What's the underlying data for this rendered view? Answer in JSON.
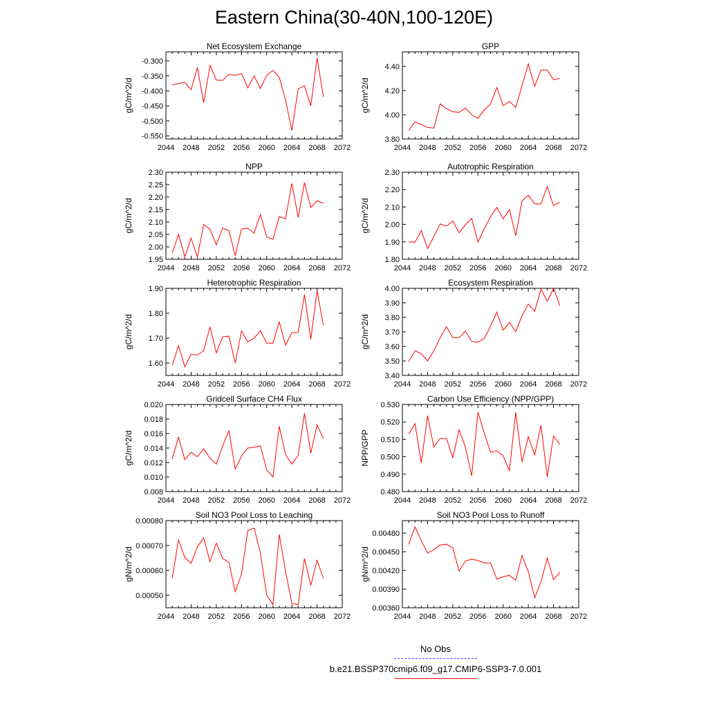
{
  "title": "Eastern China(30-40N,100-120E)",
  "legend": {
    "entries": [
      {
        "label": "No Obs",
        "color": "#4040ff",
        "style": "dashed"
      },
      {
        "label": "b.e21.BSSP370cmip6.f09_g17.CMIP6-SSP3-7.0.001",
        "color": "#ff0000",
        "style": "solid"
      }
    ],
    "placement": "bottom-right"
  },
  "chart_data": [
    {
      "type": "line",
      "title": "Net Ecosystem Exchange",
      "ylabel": "gC/m^2/d",
      "xlim": [
        2044,
        2072
      ],
      "ylim": [
        -0.56,
        -0.27
      ],
      "xticks": [
        2044,
        2048,
        2052,
        2056,
        2060,
        2064,
        2068,
        2072
      ],
      "yticks": [
        -0.55,
        -0.5,
        -0.45,
        -0.4,
        -0.35,
        -0.3
      ],
      "ytick_labels": [
        "-0.550",
        "-0.500",
        "-0.450",
        "-0.400",
        "-0.350",
        "-0.300"
      ],
      "series": [
        {
          "color": "#ff0000",
          "x": [
            2045,
            2046,
            2047,
            2048,
            2049,
            2050,
            2051,
            2052,
            2053,
            2054,
            2055,
            2056,
            2057,
            2058,
            2059,
            2060,
            2061,
            2062,
            2063,
            2064,
            2065,
            2066,
            2067,
            2068,
            2069
          ],
          "values": [
            -0.38,
            -0.375,
            -0.372,
            -0.396,
            -0.322,
            -0.439,
            -0.315,
            -0.364,
            -0.365,
            -0.345,
            -0.348,
            -0.342,
            -0.39,
            -0.35,
            -0.392,
            -0.348,
            -0.332,
            -0.355,
            -0.43,
            -0.532,
            -0.393,
            -0.383,
            -0.45,
            -0.29,
            -0.42
          ]
        }
      ]
    },
    {
      "type": "line",
      "title": "GPP",
      "ylabel": "gC/m^2/d",
      "xlim": [
        2044,
        2072
      ],
      "ylim": [
        3.8,
        4.52
      ],
      "xticks": [
        2044,
        2048,
        2052,
        2056,
        2060,
        2064,
        2068,
        2072
      ],
      "yticks": [
        3.8,
        4.0,
        4.2,
        4.4
      ],
      "ytick_labels": [
        "3.80",
        "4.00",
        "4.20",
        "4.40"
      ],
      "series": [
        {
          "color": "#ff0000",
          "x": [
            2045,
            2046,
            2047,
            2048,
            2049,
            2050,
            2051,
            2052,
            2053,
            2054,
            2055,
            2056,
            2057,
            2058,
            2059,
            2060,
            2061,
            2062,
            2063,
            2064,
            2065,
            2066,
            2067,
            2068,
            2069
          ],
          "values": [
            3.87,
            3.94,
            3.92,
            3.895,
            3.89,
            4.09,
            4.05,
            4.025,
            4.02,
            4.055,
            4.0,
            3.97,
            4.04,
            4.09,
            4.225,
            4.075,
            4.11,
            4.06,
            4.24,
            4.42,
            4.235,
            4.37,
            4.37,
            4.29,
            4.3
          ]
        }
      ]
    },
    {
      "type": "line",
      "title": "NPP",
      "ylabel": "gC/m^2/d",
      "xlim": [
        2044,
        2072
      ],
      "ylim": [
        1.95,
        2.3
      ],
      "xticks": [
        2044,
        2048,
        2052,
        2056,
        2060,
        2064,
        2068,
        2072
      ],
      "yticks": [
        1.95,
        2.0,
        2.05,
        2.1,
        2.15,
        2.2,
        2.25,
        2.3
      ],
      "ytick_labels": [
        "1.95",
        "2.00",
        "2.05",
        "2.10",
        "2.15",
        "2.20",
        "2.25",
        "2.30"
      ],
      "series": [
        {
          "color": "#ff0000",
          "x": [
            2045,
            2046,
            2047,
            2048,
            2049,
            2050,
            2051,
            2052,
            2053,
            2054,
            2055,
            2056,
            2057,
            2058,
            2059,
            2060,
            2061,
            2062,
            2063,
            2064,
            2065,
            2066,
            2067,
            2068,
            2069
          ],
          "values": [
            1.975,
            2.05,
            1.96,
            2.035,
            1.958,
            2.09,
            2.07,
            2.008,
            2.075,
            2.065,
            1.965,
            2.072,
            2.075,
            2.055,
            2.13,
            2.04,
            2.03,
            2.122,
            2.112,
            2.255,
            2.118,
            2.258,
            2.158,
            2.185,
            2.175
          ]
        }
      ]
    },
    {
      "type": "line",
      "title": "Autotrophic Respiration",
      "ylabel": "gC/m^2/d",
      "xlim": [
        2044,
        2072
      ],
      "ylim": [
        1.8,
        2.3
      ],
      "xticks": [
        2044,
        2048,
        2052,
        2056,
        2060,
        2064,
        2068,
        2072
      ],
      "yticks": [
        1.8,
        1.9,
        2.0,
        2.1,
        2.2,
        2.3
      ],
      "ytick_labels": [
        "1.80",
        "1.90",
        "2.00",
        "2.10",
        "2.20",
        "2.30"
      ],
      "series": [
        {
          "color": "#ff0000",
          "x": [
            2045,
            2046,
            2047,
            2048,
            2049,
            2050,
            2051,
            2052,
            2053,
            2054,
            2055,
            2056,
            2057,
            2058,
            2059,
            2060,
            2061,
            2062,
            2063,
            2064,
            2065,
            2066,
            2067,
            2068,
            2069
          ],
          "values": [
            1.9,
            1.898,
            1.965,
            1.862,
            1.93,
            2.003,
            1.99,
            2.02,
            1.952,
            1.998,
            2.035,
            1.898,
            1.975,
            2.045,
            2.098,
            2.032,
            2.085,
            1.935,
            2.135,
            2.168,
            2.118,
            2.118,
            2.218,
            2.108,
            2.128
          ]
        }
      ]
    },
    {
      "type": "line",
      "title": "Heterotrophic Respiration",
      "ylabel": "gC/m^2/d",
      "xlim": [
        2044,
        2072
      ],
      "ylim": [
        1.55,
        1.9
      ],
      "xticks": [
        2044,
        2048,
        2052,
        2056,
        2060,
        2064,
        2068,
        2072
      ],
      "yticks": [
        1.6,
        1.7,
        1.8,
        1.9
      ],
      "ytick_labels": [
        "1.60",
        "1.70",
        "1.80",
        "1.90"
      ],
      "series": [
        {
          "color": "#ff0000",
          "x": [
            2045,
            2046,
            2047,
            2048,
            2049,
            2050,
            2051,
            2052,
            2053,
            2054,
            2055,
            2056,
            2057,
            2058,
            2059,
            2060,
            2061,
            2062,
            2063,
            2064,
            2065,
            2066,
            2067,
            2068,
            2069
          ],
          "values": [
            1.59,
            1.67,
            1.585,
            1.635,
            1.632,
            1.65,
            1.745,
            1.64,
            1.705,
            1.708,
            1.6,
            1.728,
            1.685,
            1.7,
            1.73,
            1.68,
            1.68,
            1.765,
            1.672,
            1.722,
            1.723,
            1.875,
            1.695,
            1.89,
            1.752
          ]
        }
      ]
    },
    {
      "type": "line",
      "title": "Ecosystem Respiration",
      "ylabel": "gC/m^2/d",
      "xlim": [
        2044,
        2072
      ],
      "ylim": [
        3.4,
        4.0
      ],
      "xticks": [
        2044,
        2048,
        2052,
        2056,
        2060,
        2064,
        2068,
        2072
      ],
      "yticks": [
        3.4,
        3.5,
        3.6,
        3.7,
        3.8,
        3.9,
        4.0
      ],
      "ytick_labels": [
        "3.40",
        "3.50",
        "3.60",
        "3.70",
        "3.80",
        "3.90",
        "4.00"
      ],
      "series": [
        {
          "color": "#ff0000",
          "x": [
            2045,
            2046,
            2047,
            2048,
            2049,
            2050,
            2051,
            2052,
            2053,
            2054,
            2055,
            2056,
            2057,
            2058,
            2059,
            2060,
            2061,
            2062,
            2063,
            2064,
            2065,
            2066,
            2067,
            2068,
            2069
          ],
          "values": [
            3.495,
            3.57,
            3.55,
            3.5,
            3.57,
            3.66,
            3.735,
            3.66,
            3.66,
            3.705,
            3.635,
            3.628,
            3.655,
            3.74,
            3.835,
            3.712,
            3.765,
            3.702,
            3.81,
            3.892,
            3.842,
            3.995,
            3.91,
            4.0,
            3.88
          ]
        }
      ]
    },
    {
      "type": "line",
      "title": "Gridcell Surface CH4 Flux",
      "ylabel": "gC/m^2/d",
      "xlim": [
        2044,
        2072
      ],
      "ylim": [
        0.008,
        0.02
      ],
      "xticks": [
        2044,
        2048,
        2052,
        2056,
        2060,
        2064,
        2068,
        2072
      ],
      "yticks": [
        0.008,
        0.01,
        0.012,
        0.014,
        0.016,
        0.018,
        0.02
      ],
      "ytick_labels": [
        "0.008",
        "0.010",
        "0.012",
        "0.014",
        "0.016",
        "0.018",
        "0.020"
      ],
      "series": [
        {
          "color": "#ff0000",
          "x": [
            2045,
            2046,
            2047,
            2048,
            2049,
            2050,
            2051,
            2052,
            2053,
            2054,
            2055,
            2056,
            2057,
            2058,
            2059,
            2060,
            2061,
            2062,
            2063,
            2064,
            2065,
            2066,
            2067,
            2068,
            2069
          ],
          "values": [
            0.0125,
            0.0155,
            0.0124,
            0.0134,
            0.0128,
            0.0139,
            0.0126,
            0.0118,
            0.0143,
            0.0164,
            0.0111,
            0.0129,
            0.014,
            0.0141,
            0.0143,
            0.011,
            0.01,
            0.017,
            0.0131,
            0.0118,
            0.013,
            0.0188,
            0.0133,
            0.0172,
            0.0153
          ]
        }
      ]
    },
    {
      "type": "line",
      "title": "Carbon Use Efficiency (NPP/GPP)",
      "ylabel": "NPP/GPP",
      "xlim": [
        2044,
        2072
      ],
      "ylim": [
        0.48,
        0.53
      ],
      "xticks": [
        2044,
        2048,
        2052,
        2056,
        2060,
        2064,
        2068,
        2072
      ],
      "yticks": [
        0.48,
        0.49,
        0.5,
        0.51,
        0.52,
        0.53
      ],
      "ytick_labels": [
        "0.480",
        "0.490",
        "0.500",
        "0.510",
        "0.520",
        "0.530"
      ],
      "series": [
        {
          "color": "#ff0000",
          "x": [
            2045,
            2046,
            2047,
            2048,
            2049,
            2050,
            2051,
            2052,
            2053,
            2054,
            2055,
            2056,
            2057,
            2058,
            2059,
            2060,
            2061,
            2062,
            2063,
            2064,
            2065,
            2066,
            2067,
            2068,
            2069
          ],
          "values": [
            0.513,
            0.519,
            0.4965,
            0.5235,
            0.5055,
            0.5105,
            0.5105,
            0.4995,
            0.5155,
            0.5055,
            0.489,
            0.5255,
            0.5135,
            0.5025,
            0.5035,
            0.5005,
            0.492,
            0.5255,
            0.497,
            0.5115,
            0.501,
            0.518,
            0.4885,
            0.512,
            0.507
          ]
        }
      ]
    },
    {
      "type": "line",
      "title": "Soil NO3 Pool Loss to Leaching",
      "ylabel": "gN/m^2/d",
      "xlim": [
        2044,
        2072
      ],
      "ylim": [
        0.00045,
        0.0008
      ],
      "xticks": [
        2044,
        2048,
        2052,
        2056,
        2060,
        2064,
        2068,
        2072
      ],
      "yticks": [
        0.0005,
        0.0006,
        0.0007,
        0.0008
      ],
      "ytick_labels": [
        "0.00050",
        "0.00060",
        "0.00070",
        "0.00080"
      ],
      "series": [
        {
          "color": "#ff0000",
          "x": [
            2045,
            2046,
            2047,
            2048,
            2049,
            2050,
            2051,
            2052,
            2053,
            2054,
            2055,
            2056,
            2057,
            2058,
            2059,
            2060,
            2061,
            2062,
            2063,
            2064,
            2065,
            2066,
            2067,
            2068,
            2069
          ],
          "values": [
            0.00057,
            0.000722,
            0.000652,
            0.000628,
            0.000695,
            0.00073,
            0.000635,
            0.00071,
            0.000648,
            0.000632,
            0.000515,
            0.000585,
            0.00076,
            0.00077,
            0.00067,
            0.000502,
            0.000462,
            0.000745,
            0.000595,
            0.000468,
            0.000462,
            0.000648,
            0.00054,
            0.00064,
            0.000568
          ]
        }
      ]
    },
    {
      "type": "line",
      "title": "Soil NO3 Pool Loss to Runoff",
      "ylabel": "gN/m^2/d",
      "xlim": [
        2044,
        2072
      ],
      "ylim": [
        0.0036,
        0.005
      ],
      "xticks": [
        2044,
        2048,
        2052,
        2056,
        2060,
        2064,
        2068,
        2072
      ],
      "yticks": [
        0.0036,
        0.0039,
        0.0042,
        0.0045,
        0.0048
      ],
      "ytick_labels": [
        "0.00360",
        "0.00390",
        "0.00420",
        "0.00450",
        "0.00480"
      ],
      "series": [
        {
          "color": "#ff0000",
          "x": [
            2045,
            2046,
            2047,
            2048,
            2049,
            2050,
            2051,
            2052,
            2053,
            2054,
            2055,
            2056,
            2057,
            2058,
            2059,
            2060,
            2061,
            2062,
            2063,
            2064,
            2065,
            2066,
            2067,
            2068,
            2069
          ],
          "values": [
            0.00462,
            0.0049,
            0.00468,
            0.00448,
            0.00453,
            0.00461,
            0.00462,
            0.00456,
            0.00419,
            0.00435,
            0.00438,
            0.00436,
            0.00432,
            0.00432,
            0.00406,
            0.0041,
            0.00412,
            0.00404,
            0.00444,
            0.00418,
            0.00376,
            0.00402,
            0.0044,
            0.00405,
            0.00417
          ]
        }
      ]
    }
  ]
}
